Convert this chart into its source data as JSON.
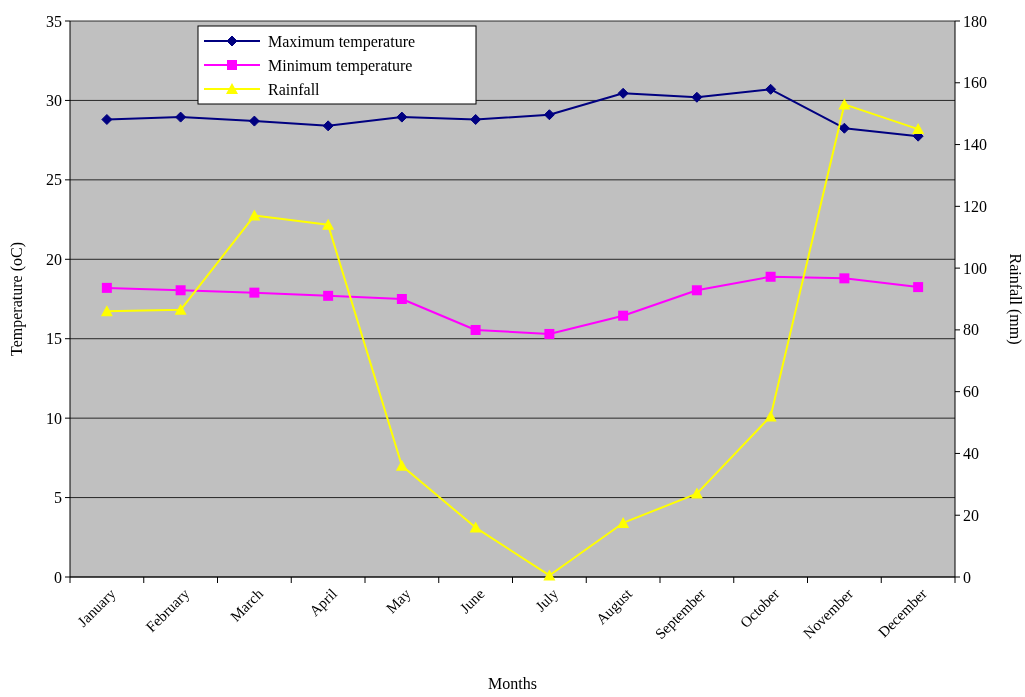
{
  "chart_data": {
    "type": "line",
    "xlabel": "Months",
    "ylabel": "Temperature (oC)",
    "y2label": "Rainfall (mm)",
    "categories": [
      "January",
      "February",
      "March",
      "April",
      "May",
      "June",
      "July",
      "August",
      "September",
      "October",
      "November",
      "December"
    ],
    "series": [
      {
        "name": "Maximum temperature",
        "color": "#000080",
        "marker": "diamond",
        "values": [
          28.8,
          28.95,
          28.7,
          28.4,
          28.95,
          28.8,
          29.1,
          30.45,
          30.2,
          30.7,
          28.25,
          27.75
        ]
      },
      {
        "name": "Minimum temperature",
        "color": "#ff00ff",
        "marker": "square",
        "values": [
          18.2,
          18.05,
          17.9,
          17.7,
          17.5,
          15.55,
          15.3,
          16.45,
          18.05,
          18.9,
          18.8,
          18.25
        ]
      },
      {
        "name": "Rainfall",
        "color": "#ffff00",
        "marker": "triangle",
        "axis": "y2",
        "values": [
          86,
          86.5,
          117,
          114,
          36,
          16,
          0.5,
          17.5,
          27,
          52,
          153,
          145
        ]
      }
    ],
    "ylim": [
      0,
      35
    ],
    "yticks": [
      0,
      5,
      10,
      15,
      20,
      25,
      30,
      35
    ],
    "y2lim": [
      0,
      180
    ],
    "y2ticks": [
      0,
      20,
      40,
      60,
      80,
      100,
      120,
      140,
      160,
      180
    ],
    "grid": "y",
    "legend": "top left"
  }
}
